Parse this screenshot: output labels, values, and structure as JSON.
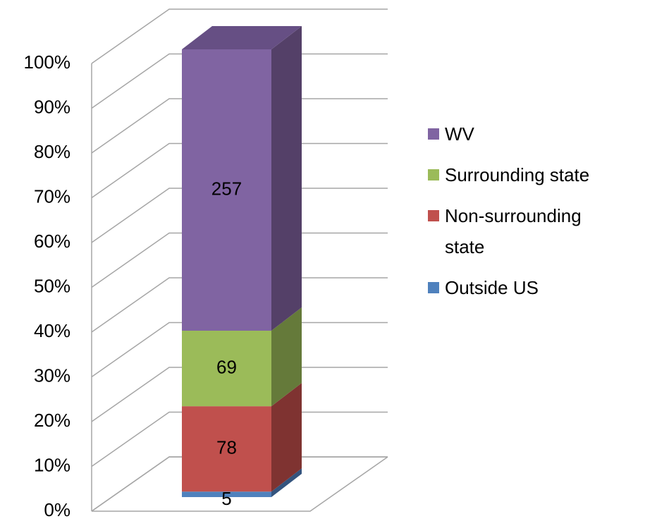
{
  "chart_data": {
    "type": "bar",
    "stacked": "percent",
    "categories": [
      null
    ],
    "series": [
      {
        "name": "Outside US",
        "color": "#4f81bd",
        "side": "#34547e",
        "values": [
          5
        ]
      },
      {
        "name": "Non-surrounding state",
        "color": "#c0504d",
        "side": "#7f3331",
        "values": [
          78
        ]
      },
      {
        "name": "Surrounding state",
        "color": "#9bbb59",
        "side": "#657a3a",
        "values": [
          69
        ]
      },
      {
        "name": "WV",
        "color": "#8064a2",
        "side": "#544068",
        "top": "#664f84",
        "values": [
          257
        ]
      }
    ],
    "ylim": [
      0,
      100
    ],
    "yticks": [
      {
        "value": 0,
        "label": "0%"
      },
      {
        "value": 10,
        "label": "10%"
      },
      {
        "value": 20,
        "label": "20%"
      },
      {
        "value": 30,
        "label": "30%"
      },
      {
        "value": 40,
        "label": "40%"
      },
      {
        "value": 50,
        "label": "50%"
      },
      {
        "value": 60,
        "label": "60%"
      },
      {
        "value": 70,
        "label": "70%"
      },
      {
        "value": 80,
        "label": "80%"
      },
      {
        "value": 90,
        "label": "90%"
      },
      {
        "value": 100,
        "label": "100%"
      }
    ],
    "grid": true,
    "legend": "right"
  }
}
